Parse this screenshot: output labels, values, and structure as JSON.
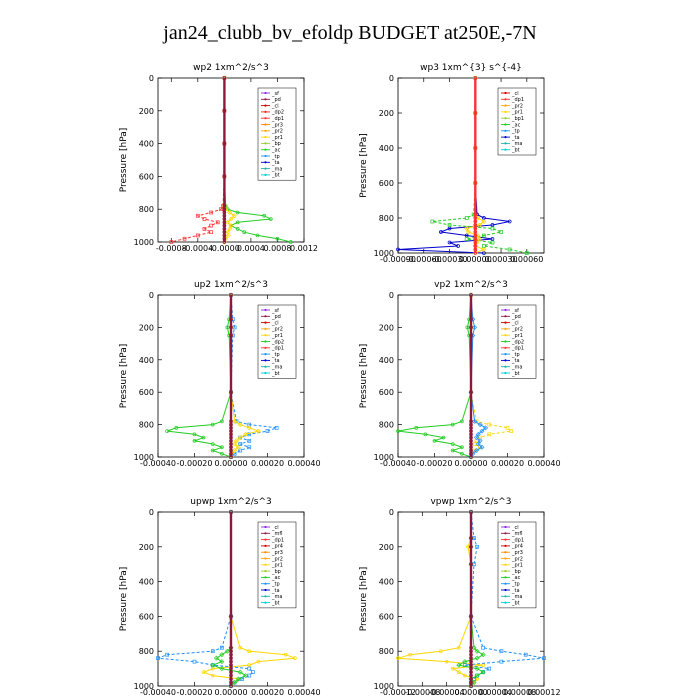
{
  "title": "jan24_clubb_bv_efoldp  BUDGET at250E,-7N",
  "chart_data": [
    {
      "type": "line",
      "title": "wp2   1xm^2/s^3",
      "ylabel": "Pressure [hPa]",
      "xlim": [
        -0.001,
        0.0012
      ],
      "ylim": [
        1000,
        0
      ],
      "xticks": [
        -0.0008,
        -0.0004,
        0.0,
        0.0004,
        0.0008,
        0.0012
      ],
      "xtick_labels": [
        "-0.0008",
        "-0.0004",
        "-0.0000",
        "0.0004",
        "0.0008",
        "0.0012"
      ],
      "yticks": [
        0,
        200,
        400,
        600,
        800,
        1000
      ],
      "legend": [
        "_sf",
        "_pd",
        "_cl",
        "_dp2",
        "_dp1",
        "_pr3",
        "_pr2",
        "_pr1",
        "_bp",
        "_ac",
        "_tp",
        "_ta",
        "_ma",
        "_bt"
      ],
      "legend_colors": [
        "#8a2be2",
        "#8b1a3a",
        "#cc0000",
        "#ff2020",
        "#ff3030",
        "#ff8c00",
        "#ffa500",
        "#ffd700",
        "#9acd32",
        "#22cc22",
        "#1e90ff",
        "#0000cd",
        "#20b2aa",
        "#00ced1"
      ],
      "pressure": [
        0,
        200,
        400,
        600,
        780,
        800,
        820,
        840,
        860,
        880,
        900,
        920,
        940,
        960,
        980,
        1000
      ],
      "series": [
        {
          "name": "_ac",
          "color": "#22cc22",
          "values": [
            0,
            0,
            0,
            0,
            2e-05,
            5e-05,
            0.0002,
            0.0006,
            0.0007,
            0.0002,
            0.0001,
            0.0002,
            0.0003,
            0.0005,
            0.0008,
            0.001
          ]
        },
        {
          "name": "_dp1",
          "color": "#ff3030",
          "values": [
            0,
            0,
            0,
            0,
            -2e-05,
            -5e-05,
            -0.0002,
            -0.0004,
            -0.0003,
            -0.0001,
            -0.0002,
            -0.0003,
            -0.0002,
            -0.0004,
            -0.0006,
            -0.0008
          ]
        },
        {
          "name": "_pr1",
          "color": "#ffd700",
          "values": [
            0,
            0,
            0,
            0,
            0,
            2e-05,
            8e-05,
            0.00015,
            0.0001,
            5e-05,
            0.0001,
            8e-05,
            5e-05,
            6e-05,
            2e-05,
            0
          ]
        },
        {
          "name": "_pd",
          "color": "#8b1a3a",
          "values": [
            0,
            0,
            0,
            0,
            0,
            0,
            0,
            0,
            0,
            0,
            0,
            0,
            0,
            0,
            0,
            0
          ]
        }
      ]
    },
    {
      "type": "line",
      "title": "wp3   1xm^{3} s^{-4}",
      "ylabel": "Pressure [hPa]",
      "xlim": [
        -0.0009,
        0.0008
      ],
      "ylim": [
        1000,
        0
      ],
      "xticks": [
        -0.0009,
        -0.0006,
        -0.0003,
        0.0,
        0.0003,
        0.0006
      ],
      "xtick_labels": [
        "-0.00090",
        "-0.00060",
        "-0.00030",
        "0.00000",
        "0.00030",
        "0.00060"
      ],
      "yticks": [
        0,
        200,
        400,
        600,
        800,
        1000
      ],
      "legend": [
        "_cl",
        "_dp1",
        "_pr2",
        "_pr1",
        "_bp1",
        "_ac",
        "_tp",
        "_ta",
        "_ma",
        "_bt"
      ],
      "legend_colors": [
        "#cc0000",
        "#ff3030",
        "#ffa500",
        "#ffd700",
        "#9acd32",
        "#22cc22",
        "#1e90ff",
        "#0000cd",
        "#20b2aa",
        "#00ced1"
      ],
      "pressure": [
        0,
        200,
        400,
        600,
        780,
        800,
        820,
        840,
        860,
        880,
        900,
        920,
        940,
        960,
        980,
        1000
      ],
      "series": [
        {
          "name": "_ta",
          "color": "#0000cd",
          "values": [
            0,
            0,
            0,
            0,
            2e-05,
            0.0001,
            0.0004,
            0.0002,
            -0.0003,
            -0.0004,
            -0.0001,
            0.0002,
            -0.0003,
            -0.0002,
            -0.0009,
            0.0001
          ]
        },
        {
          "name": "_ac",
          "color": "#22cc22",
          "values": [
            0,
            0,
            0,
            0,
            -2e-05,
            -0.0001,
            -0.0005,
            -0.0003,
            0.0002,
            0.0003,
            0.0001,
            -0.0001,
            0.0002,
            0.0001,
            0.0004,
            0.0006
          ]
        },
        {
          "name": "_pr1",
          "color": "#ffd700",
          "values": [
            0,
            0,
            0,
            0,
            0,
            3e-05,
            0.0001,
            5e-05,
            -0.0001,
            -8e-05,
            3e-05,
            5e-05,
            2e-05,
            0,
            0.0001,
            0
          ]
        },
        {
          "name": "_dp1",
          "color": "#ff3030",
          "values": [
            0,
            0,
            0,
            0,
            0,
            0,
            0,
            0,
            0,
            0,
            0,
            0,
            0,
            0,
            0,
            0
          ]
        }
      ]
    },
    {
      "type": "line",
      "title": "up2   1xm^2/s^3",
      "ylabel": "Pressure [hPa]",
      "xlim": [
        -0.0004,
        0.0004
      ],
      "ylim": [
        1000,
        0
      ],
      "xticks": [
        -0.0004,
        -0.0002,
        0.0,
        0.0002,
        0.0004
      ],
      "xtick_labels": [
        "-0.00040",
        "-0.00020",
        "0.00000",
        "0.00020",
        "0.00040"
      ],
      "yticks": [
        0,
        200,
        400,
        600,
        800,
        1000
      ],
      "legend": [
        "_sf",
        "_pd",
        "_cl",
        "_pr2",
        "_pr1",
        "_dp2",
        "_dp1",
        "_tp",
        "_ta",
        "_ma",
        "_bt"
      ],
      "legend_colors": [
        "#8a2be2",
        "#8b1a3a",
        "#cc0000",
        "#ffa500",
        "#ffd700",
        "#22cc22",
        "#ff3030",
        "#1e90ff",
        "#0000cd",
        "#20b2aa",
        "#00ced1"
      ],
      "pressure": [
        0,
        150,
        200,
        250,
        600,
        780,
        800,
        820,
        840,
        860,
        880,
        900,
        920,
        940,
        960,
        980,
        1000
      ],
      "series": [
        {
          "name": "_dp2",
          "color": "#22cc22",
          "values": [
            0,
            -1e-05,
            -2e-05,
            -1e-05,
            0,
            -5e-05,
            -0.0001,
            -0.0003,
            -0.00035,
            -0.0002,
            -0.00015,
            -0.0002,
            -0.0001,
            -5e-05,
            -0.0001,
            -5e-05,
            0
          ]
        },
        {
          "name": "_tp",
          "color": "#1e90ff",
          "values": [
            0,
            1e-05,
            2e-05,
            1e-05,
            0,
            3e-05,
            0.0001,
            0.00025,
            0.0002,
            0.0001,
            5e-05,
            0.0001,
            5e-05,
            0.0001,
            5e-05,
            2e-05,
            0
          ]
        },
        {
          "name": "_pr1",
          "color": "#ffd700",
          "values": [
            0,
            0,
            0,
            0,
            0,
            2e-05,
            5e-05,
            0.0001,
            0.00015,
            8e-05,
            5e-05,
            3e-05,
            2e-05,
            4e-05,
            2e-05,
            0,
            0
          ]
        },
        {
          "name": "_pd",
          "color": "#8b1a3a",
          "values": [
            0,
            0,
            0,
            0,
            0,
            0,
            0,
            0,
            0,
            0,
            0,
            0,
            0,
            0,
            0,
            0,
            0
          ]
        }
      ]
    },
    {
      "type": "line",
      "title": "vp2   1xm^2/s^3",
      "ylabel": "Pressure [hPa]",
      "xlim": [
        -0.0004,
        0.0004
      ],
      "ylim": [
        1000,
        0
      ],
      "xticks": [
        -0.0004,
        -0.0002,
        0.0,
        0.0002,
        0.0004
      ],
      "xtick_labels": [
        "-0.00040",
        "-0.00020",
        "0.00000",
        "0.00020",
        "0.00040"
      ],
      "yticks": [
        0,
        200,
        400,
        600,
        800,
        1000
      ],
      "legend": [
        "_sf",
        "_pd",
        "_cl",
        "_pr2",
        "_pr1",
        "_dp2",
        "_dp1",
        "_tp",
        "_ta",
        "_ma",
        "_bt"
      ],
      "legend_colors": [
        "#8a2be2",
        "#8b1a3a",
        "#cc0000",
        "#ffa500",
        "#ffd700",
        "#22cc22",
        "#ff3030",
        "#1e90ff",
        "#0000cd",
        "#20b2aa",
        "#00ced1"
      ],
      "pressure": [
        0,
        150,
        200,
        250,
        600,
        780,
        800,
        820,
        840,
        860,
        880,
        900,
        920,
        940,
        960,
        980,
        1000
      ],
      "series": [
        {
          "name": "_dp2",
          "color": "#22cc22",
          "values": [
            0,
            -1e-05,
            -2e-05,
            -1e-05,
            0,
            -5e-05,
            -0.0001,
            -0.0003,
            -0.0004,
            -0.00025,
            -0.00015,
            -0.0002,
            -0.0001,
            -5e-05,
            -0.0001,
            -5e-05,
            0
          ]
        },
        {
          "name": "_pr1",
          "color": "#ffd700",
          "values": [
            0,
            0,
            0,
            0,
            0,
            3e-05,
            0.0001,
            0.0002,
            0.00022,
            0.0001,
            5e-05,
            3e-05,
            2e-05,
            5e-05,
            2e-05,
            0,
            0
          ]
        },
        {
          "name": "_tp",
          "color": "#1e90ff",
          "values": [
            0,
            1e-05,
            2e-05,
            1e-05,
            0,
            2e-05,
            5e-05,
            8e-05,
            6e-05,
            4e-05,
            3e-05,
            5e-05,
            4e-05,
            6e-05,
            3e-05,
            1e-05,
            0
          ]
        },
        {
          "name": "_pd",
          "color": "#8b1a3a",
          "values": [
            0,
            0,
            0,
            0,
            0,
            0,
            0,
            0,
            0,
            0,
            0,
            0,
            0,
            0,
            0,
            0,
            0
          ]
        }
      ]
    },
    {
      "type": "line",
      "title": "upwp   1xm^2/s^3",
      "ylabel": "Pressure [hPa]",
      "xlim": [
        -0.0004,
        0.0004
      ],
      "ylim": [
        1000,
        0
      ],
      "xticks": [
        -0.0004,
        -0.0002,
        0.0,
        0.0002,
        0.0004
      ],
      "xtick_labels": [
        "-0.00040",
        "-0.00020",
        "0.00000",
        "0.00020",
        "0.00040"
      ],
      "yticks": [
        0,
        200,
        400,
        600,
        800,
        1000
      ],
      "legend": [
        "_cl",
        "_mfl",
        "_dp1",
        "_pr4",
        "_pr3",
        "_pr2",
        "_pr1",
        "_bp",
        "_ac",
        "_tp",
        "_ta",
        "_ma",
        "_bt"
      ],
      "legend_colors": [
        "#8a2be2",
        "#8b1a3a",
        "#ff3030",
        "#cc0000",
        "#ff8c00",
        "#ffa500",
        "#ffd700",
        "#9acd32",
        "#22cc22",
        "#1e90ff",
        "#0000cd",
        "#20b2aa",
        "#00ced1"
      ],
      "pressure": [
        0,
        600,
        780,
        800,
        820,
        840,
        860,
        880,
        900,
        920,
        940,
        960,
        980,
        1000
      ],
      "series": [
        {
          "name": "_pr1",
          "color": "#ffd700",
          "values": [
            0,
            0,
            5e-05,
            0.0001,
            0.0003,
            0.00035,
            0.00015,
            0.0001,
            -0.0001,
            -0.00015,
            -0.0001,
            5e-05,
            2e-05,
            0
          ]
        },
        {
          "name": "_tp",
          "color": "#1e90ff",
          "values": [
            0,
            0,
            -5e-05,
            -0.0001,
            -0.00035,
            -0.0004,
            -0.0002,
            -0.0001,
            0.0001,
            0.00012,
            0.0001,
            6e-05,
            2e-05,
            0
          ]
        },
        {
          "name": "_ac",
          "color": "#22cc22",
          "values": [
            0,
            0,
            0,
            -2e-05,
            -5e-05,
            -8e-05,
            -5e-05,
            -0.0001,
            -5e-05,
            5e-05,
            8e-05,
            4e-05,
            2e-05,
            0
          ]
        },
        {
          "name": "_mfl",
          "color": "#8b1a3a",
          "values": [
            0,
            0,
            0,
            0,
            0,
            0,
            0,
            0,
            0,
            0,
            0,
            0,
            0,
            0
          ]
        }
      ]
    },
    {
      "type": "line",
      "title": "vpwp   1xm^2/s^3",
      "ylabel": "Pressure [hPa]",
      "xlim": [
        -0.00012,
        0.00012
      ],
      "ylim": [
        1000,
        0
      ],
      "xticks": [
        -0.00012,
        -8e-05,
        -4e-05,
        0.0,
        4e-05,
        8e-05,
        0.00012
      ],
      "xtick_labels": [
        "-0.00012",
        "-0.00008",
        "-0.00004",
        "0.00000",
        "0.00004",
        "0.00008",
        "0.00012"
      ],
      "yticks": [
        0,
        200,
        400,
        600,
        800,
        1000
      ],
      "legend": [
        "_cl",
        "_mfl",
        "_dp1",
        "_pr4",
        "_pr3",
        "_pr2",
        "_pr1",
        "_bp",
        "_ac",
        "_tp",
        "_ta",
        "_ma",
        "_bt"
      ],
      "legend_colors": [
        "#8a2be2",
        "#8b1a3a",
        "#ff3030",
        "#cc0000",
        "#ff8c00",
        "#ffa500",
        "#ffd700",
        "#9acd32",
        "#22cc22",
        "#1e90ff",
        "#0000cd",
        "#20b2aa",
        "#00ced1"
      ],
      "pressure": [
        0,
        150,
        200,
        300,
        600,
        780,
        800,
        820,
        840,
        860,
        880,
        900,
        920,
        940,
        960,
        980,
        1000
      ],
      "series": [
        {
          "name": "_pr1",
          "color": "#ffd700",
          "values": [
            0,
            0,
            -5e-06,
            0,
            0,
            -2e-05,
            -5e-05,
            -0.0001,
            -0.00012,
            -4e-05,
            2e-05,
            -3e-05,
            -2e-05,
            -1e-05,
            1e-05,
            5e-06,
            0
          ]
        },
        {
          "name": "_tp",
          "color": "#1e90ff",
          "values": [
            0,
            5e-06,
            1e-05,
            5e-06,
            0,
            2e-05,
            5e-05,
            9e-05,
            0.00012,
            5e-05,
            -1e-05,
            3e-05,
            2e-05,
            1e-05,
            5e-06,
            0,
            0
          ]
        },
        {
          "name": "_ac",
          "color": "#22cc22",
          "values": [
            0,
            0,
            0,
            0,
            0,
            5e-06,
            1e-05,
            2e-05,
            1e-05,
            -1e-05,
            -2e-05,
            1e-05,
            2e-05,
            1e-05,
            0,
            5e-06,
            0
          ]
        },
        {
          "name": "_mfl",
          "color": "#8b1a3a",
          "values": [
            0,
            0,
            0,
            0,
            0,
            0,
            0,
            0,
            0,
            0,
            0,
            0,
            0,
            0,
            0,
            0,
            0
          ]
        }
      ]
    }
  ]
}
